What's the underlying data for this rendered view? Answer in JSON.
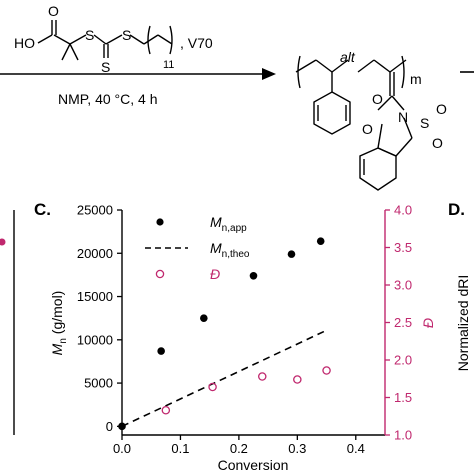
{
  "scheme": {
    "reagent_labels": {
      "ho": "HO",
      "carbonyl_o": "O",
      "s_left": "S",
      "s_right": "S",
      "s_thione": "S",
      "subscript": "11",
      "initiator": ", V70"
    },
    "conditions": "NMP, 40 °C, 4 h",
    "product_labels": {
      "alt": "alt",
      "repeat": "m",
      "n": "N",
      "s": "S",
      "o_amide": "O",
      "o_keto": "O",
      "o_sulfonyl_1": "O",
      "o_sulfonyl_2": "O"
    }
  },
  "panels": {
    "c": "C.",
    "d": "D."
  },
  "side_axis": {
    "label": "Normalized dRI"
  },
  "colors": {
    "primary": "#000000",
    "dispersity": "#c0286e"
  },
  "chart_data": {
    "type": "scatter",
    "xlabel": "Conversion",
    "ylabel_main": "M",
    "ylabel_sub": "n",
    "ylabel_unit": " (g/mol)",
    "ylabel_right": "Đ",
    "xlim": [
      0.0,
      0.45
    ],
    "ylim": [
      -1000,
      25000
    ],
    "ylim_right": [
      1.0,
      4.0
    ],
    "xticks": [
      0.0,
      0.1,
      0.2,
      0.3,
      0.4
    ],
    "yticks": [
      0,
      5000,
      10000,
      15000,
      20000,
      25000
    ],
    "yticks_right": [
      1.0,
      1.5,
      2.0,
      2.5,
      3.0,
      3.5,
      4.0
    ],
    "series": [
      {
        "legend_main": "M",
        "legend_sub": "n,app",
        "style": "filled-circle",
        "axis": "left",
        "x": [
          0.0,
          0.067,
          0.14,
          0.225,
          0.29,
          0.34
        ],
        "y": [
          0,
          8700,
          12500,
          17400,
          19900,
          21400
        ]
      },
      {
        "legend_main": "M",
        "legend_sub": "n,theo",
        "style": "dashed-line",
        "axis": "left",
        "x": [
          0.0,
          0.35
        ],
        "y": [
          0,
          11100
        ]
      },
      {
        "legend_main": "Đ",
        "style": "open-circle",
        "axis": "right",
        "x": [
          0.075,
          0.155,
          0.24,
          0.3,
          0.35
        ],
        "y": [
          1.33,
          1.64,
          1.78,
          1.74,
          1.86
        ]
      }
    ]
  }
}
